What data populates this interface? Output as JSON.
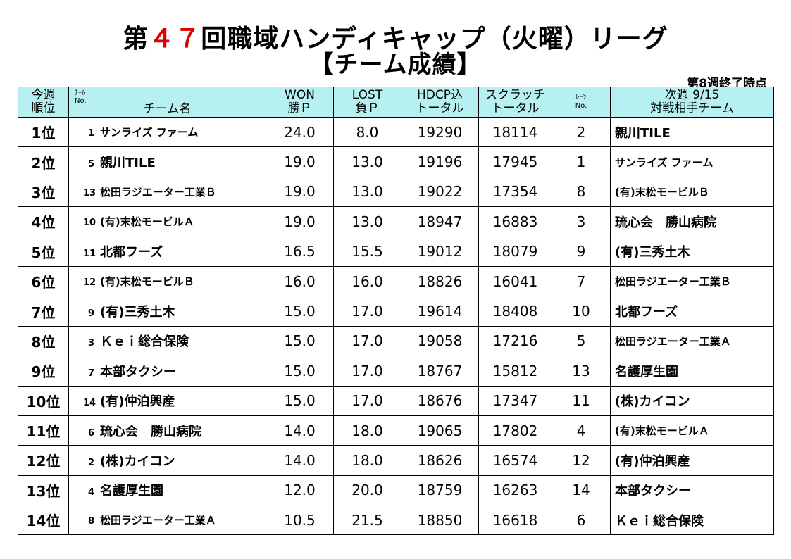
{
  "title": {
    "prefix": "第",
    "number": "４７",
    "suffix": "回職域ハンディキャップ（火曜）リーグ",
    "subtitle": "【チーム成績】"
  },
  "as_of": "第8週終了時点",
  "header": {
    "rank": [
      "今週",
      "順位"
    ],
    "team_no_small": [
      "ﾁｰﾑ",
      "No."
    ],
    "team_name": "チーム名",
    "won": [
      "WON",
      "勝Ｐ"
    ],
    "lost": [
      "LOST",
      "負Ｐ"
    ],
    "hdcp": [
      "HDCP込",
      "トータル"
    ],
    "scratch": [
      "スクラッチ",
      "トータル"
    ],
    "lane": [
      "ﾚｰﾝ",
      "No."
    ],
    "next": [
      "次週 9/15",
      "対戦相手チーム"
    ]
  },
  "rows": [
    {
      "rank": "1位",
      "no": "1",
      "team": "サンライズ ファーム",
      "won": "24.0",
      "lost": "8.0",
      "hdcp": "19290",
      "scratch": "18114",
      "lane": "2",
      "opponent": "親川TILE"
    },
    {
      "rank": "2位",
      "no": "5",
      "team": "親川TILE",
      "won": "19.0",
      "lost": "13.0",
      "hdcp": "19196",
      "scratch": "17945",
      "lane": "1",
      "opponent": "サンライズ ファーム"
    },
    {
      "rank": "3位",
      "no": "13",
      "team": "松田ラジエーター工業Ｂ",
      "won": "19.0",
      "lost": "13.0",
      "hdcp": "19022",
      "scratch": "17354",
      "lane": "8",
      "opponent": "(有)末松モービルＢ"
    },
    {
      "rank": "4位",
      "no": "10",
      "team": "(有)末松モービルＡ",
      "won": "19.0",
      "lost": "13.0",
      "hdcp": "18947",
      "scratch": "16883",
      "lane": "3",
      "opponent": "琉心会　勝山病院"
    },
    {
      "rank": "5位",
      "no": "11",
      "team": "北都フーズ",
      "won": "16.5",
      "lost": "15.5",
      "hdcp": "19012",
      "scratch": "18079",
      "lane": "9",
      "opponent": "(有)三秀土木"
    },
    {
      "rank": "6位",
      "no": "12",
      "team": "(有)末松モービルＢ",
      "won": "16.0",
      "lost": "16.0",
      "hdcp": "18826",
      "scratch": "16041",
      "lane": "7",
      "opponent": "松田ラジエーター工業Ｂ"
    },
    {
      "rank": "7位",
      "no": "9",
      "team": "(有)三秀土木",
      "won": "15.0",
      "lost": "17.0",
      "hdcp": "19614",
      "scratch": "18408",
      "lane": "10",
      "opponent": "北都フーズ"
    },
    {
      "rank": "8位",
      "no": "3",
      "team": "Ｋｅｉ総合保険",
      "won": "15.0",
      "lost": "17.0",
      "hdcp": "19058",
      "scratch": "17216",
      "lane": "5",
      "opponent": "松田ラジエーター工業Ａ"
    },
    {
      "rank": "9位",
      "no": "7",
      "team": "本部タクシー",
      "won": "15.0",
      "lost": "17.0",
      "hdcp": "18767",
      "scratch": "15812",
      "lane": "13",
      "opponent": "名護厚生園"
    },
    {
      "rank": "10位",
      "no": "14",
      "team": "(有)仲泊興産",
      "won": "15.0",
      "lost": "17.0",
      "hdcp": "18676",
      "scratch": "17347",
      "lane": "11",
      "opponent": "(株)カイコン"
    },
    {
      "rank": "11位",
      "no": "6",
      "team": "琉心会　勝山病院",
      "won": "14.0",
      "lost": "18.0",
      "hdcp": "19065",
      "scratch": "17802",
      "lane": "4",
      "opponent": "(有)末松モービルＡ"
    },
    {
      "rank": "12位",
      "no": "2",
      "team": "(株)カイコン",
      "won": "14.0",
      "lost": "18.0",
      "hdcp": "18626",
      "scratch": "16574",
      "lane": "12",
      "opponent": "(有)仲泊興産"
    },
    {
      "rank": "13位",
      "no": "4",
      "team": "名護厚生園",
      "won": "12.0",
      "lost": "20.0",
      "hdcp": "18759",
      "scratch": "16263",
      "lane": "14",
      "opponent": "本部タクシー"
    },
    {
      "rank": "14位",
      "no": "8",
      "team": "松田ラジエーター工業Ａ",
      "won": "10.5",
      "lost": "21.5",
      "hdcp": "18850",
      "scratch": "16618",
      "lane": "6",
      "opponent": "Ｋｅｉ総合保険"
    }
  ],
  "colors": {
    "header_bg": "#b7f0f0",
    "title_number": "#e00000"
  }
}
